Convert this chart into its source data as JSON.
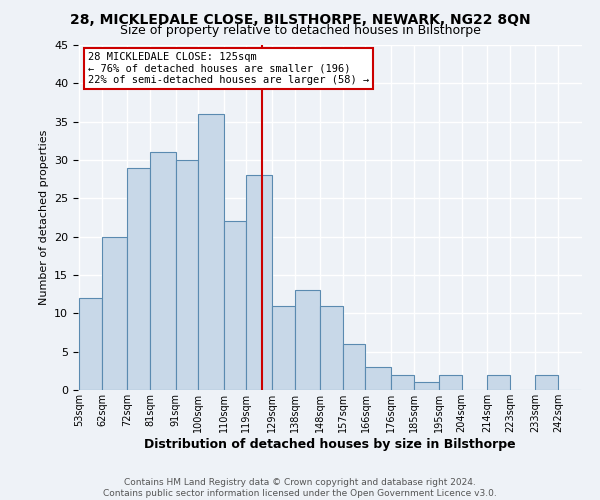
{
  "title": "28, MICKLEDALE CLOSE, BILSTHORPE, NEWARK, NG22 8QN",
  "subtitle": "Size of property relative to detached houses in Bilsthorpe",
  "xlabel": "Distribution of detached houses by size in Bilsthorpe",
  "ylabel": "Number of detached properties",
  "footer": "Contains HM Land Registry data © Crown copyright and database right 2024.\nContains public sector information licensed under the Open Government Licence v3.0.",
  "bin_labels": [
    "53sqm",
    "62sqm",
    "72sqm",
    "81sqm",
    "91sqm",
    "100sqm",
    "110sqm",
    "119sqm",
    "129sqm",
    "138sqm",
    "148sqm",
    "157sqm",
    "166sqm",
    "176sqm",
    "185sqm",
    "195sqm",
    "204sqm",
    "214sqm",
    "223sqm",
    "233sqm",
    "242sqm"
  ],
  "bar_values": [
    12,
    20,
    29,
    31,
    30,
    36,
    22,
    28,
    11,
    13,
    11,
    6,
    3,
    2,
    1,
    2,
    0,
    2,
    0,
    2,
    0
  ],
  "bar_color": "#c8d8e8",
  "bar_edge_color": "#5a8ab0",
  "property_line_x": 125,
  "bin_edges": [
    53,
    62,
    72,
    81,
    91,
    100,
    110,
    119,
    129,
    138,
    148,
    157,
    166,
    176,
    185,
    195,
    204,
    214,
    223,
    233,
    242,
    251
  ],
  "annotation_title": "28 MICKLEDALE CLOSE: 125sqm",
  "annotation_line1": "← 76% of detached houses are smaller (196)",
  "annotation_line2": "22% of semi-detached houses are larger (58) →",
  "annotation_box_color": "#ffffff",
  "annotation_box_edge": "#cc0000",
  "vline_color": "#cc0000",
  "ylim": [
    0,
    45
  ],
  "yticks": [
    0,
    5,
    10,
    15,
    20,
    25,
    30,
    35,
    40,
    45
  ],
  "background_color": "#eef2f7",
  "grid_color": "#ffffff",
  "title_fontsize": 10,
  "subtitle_fontsize": 9,
  "ylabel_fontsize": 8,
  "xlabel_fontsize": 9,
  "tick_fontsize": 7,
  "footer_fontsize": 6.5,
  "annotation_fontsize": 7.5
}
